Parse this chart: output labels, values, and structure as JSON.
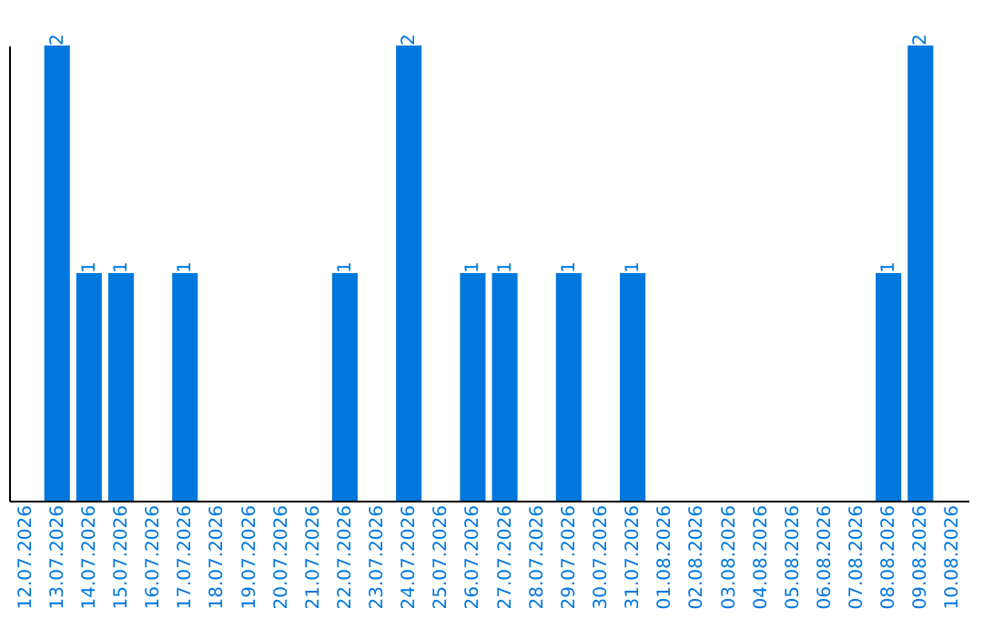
{
  "chart_data": {
    "type": "bar",
    "categories": [
      "12.07.2026",
      "13.07.2026",
      "14.07.2026",
      "15.07.2026",
      "16.07.2026",
      "17.07.2026",
      "18.07.2026",
      "19.07.2026",
      "20.07.2026",
      "21.07.2026",
      "22.07.2026",
      "23.07.2026",
      "24.07.2026",
      "25.07.2026",
      "26.07.2026",
      "27.07.2026",
      "28.07.2026",
      "29.07.2026",
      "30.07.2026",
      "31.07.2026",
      "01.08.2026",
      "02.08.2026",
      "03.08.2026",
      "04.08.2026",
      "05.08.2026",
      "06.08.2026",
      "07.08.2026",
      "08.08.2026",
      "09.08.2026",
      "10.08.2026"
    ],
    "values": [
      null,
      2,
      1,
      1,
      null,
      1,
      null,
      null,
      null,
      null,
      1,
      null,
      2,
      null,
      1,
      1,
      null,
      1,
      null,
      1,
      null,
      null,
      null,
      null,
      null,
      null,
      null,
      1,
      2,
      null
    ],
    "color": "#0077dd",
    "data_labels": true,
    "tick_labels": "x",
    "grid": false
  }
}
